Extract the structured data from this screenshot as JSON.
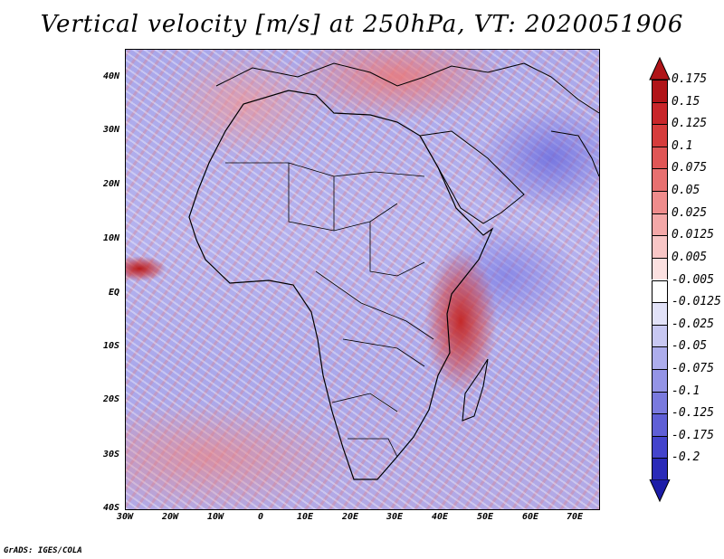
{
  "title": "Vertical velocity [m/s] at 250hPa, VT: 2020051906",
  "footer": "GrADS: IGES/COLA",
  "lat_labels": [
    "40N",
    "30N",
    "20N",
    "10N",
    "EQ",
    "10S",
    "20S",
    "30S",
    "40S"
  ],
  "lon_labels": [
    "30W",
    "20W",
    "10W",
    "0",
    "10E",
    "20E",
    "30E",
    "40E",
    "50E",
    "60E",
    "70E"
  ],
  "colorbar": {
    "levels": [
      {
        "label": "0.175",
        "color": "#b01418"
      },
      {
        "label": "0.15",
        "color": "#c8262a"
      },
      {
        "label": "0.125",
        "color": "#d63c3c"
      },
      {
        "label": "0.1",
        "color": "#e05656"
      },
      {
        "label": "0.075",
        "color": "#e87070"
      },
      {
        "label": "0.05",
        "color": "#ef8c8c"
      },
      {
        "label": "0.025",
        "color": "#f4a8a8"
      },
      {
        "label": "0.0125",
        "color": "#f8c6c6"
      },
      {
        "label": "0.005",
        "color": "#fbe0e0"
      },
      {
        "label": "-0.005",
        "color": "#ffffff"
      },
      {
        "label": "-0.0125",
        "color": "#e2e2f8"
      },
      {
        "label": "-0.025",
        "color": "#c8c8f2"
      },
      {
        "label": "-0.05",
        "color": "#adadec"
      },
      {
        "label": "-0.075",
        "color": "#9494e6"
      },
      {
        "label": "-0.1",
        "color": "#7a7ade"
      },
      {
        "label": "-0.125",
        "color": "#5f5fd6"
      },
      {
        "label": "-0.175",
        "color": "#4444cc"
      },
      {
        "label": "-0.2",
        "color": "#2a2ab8"
      }
    ],
    "max_color": "#b01418",
    "min_color": "#1c1ca8"
  }
}
